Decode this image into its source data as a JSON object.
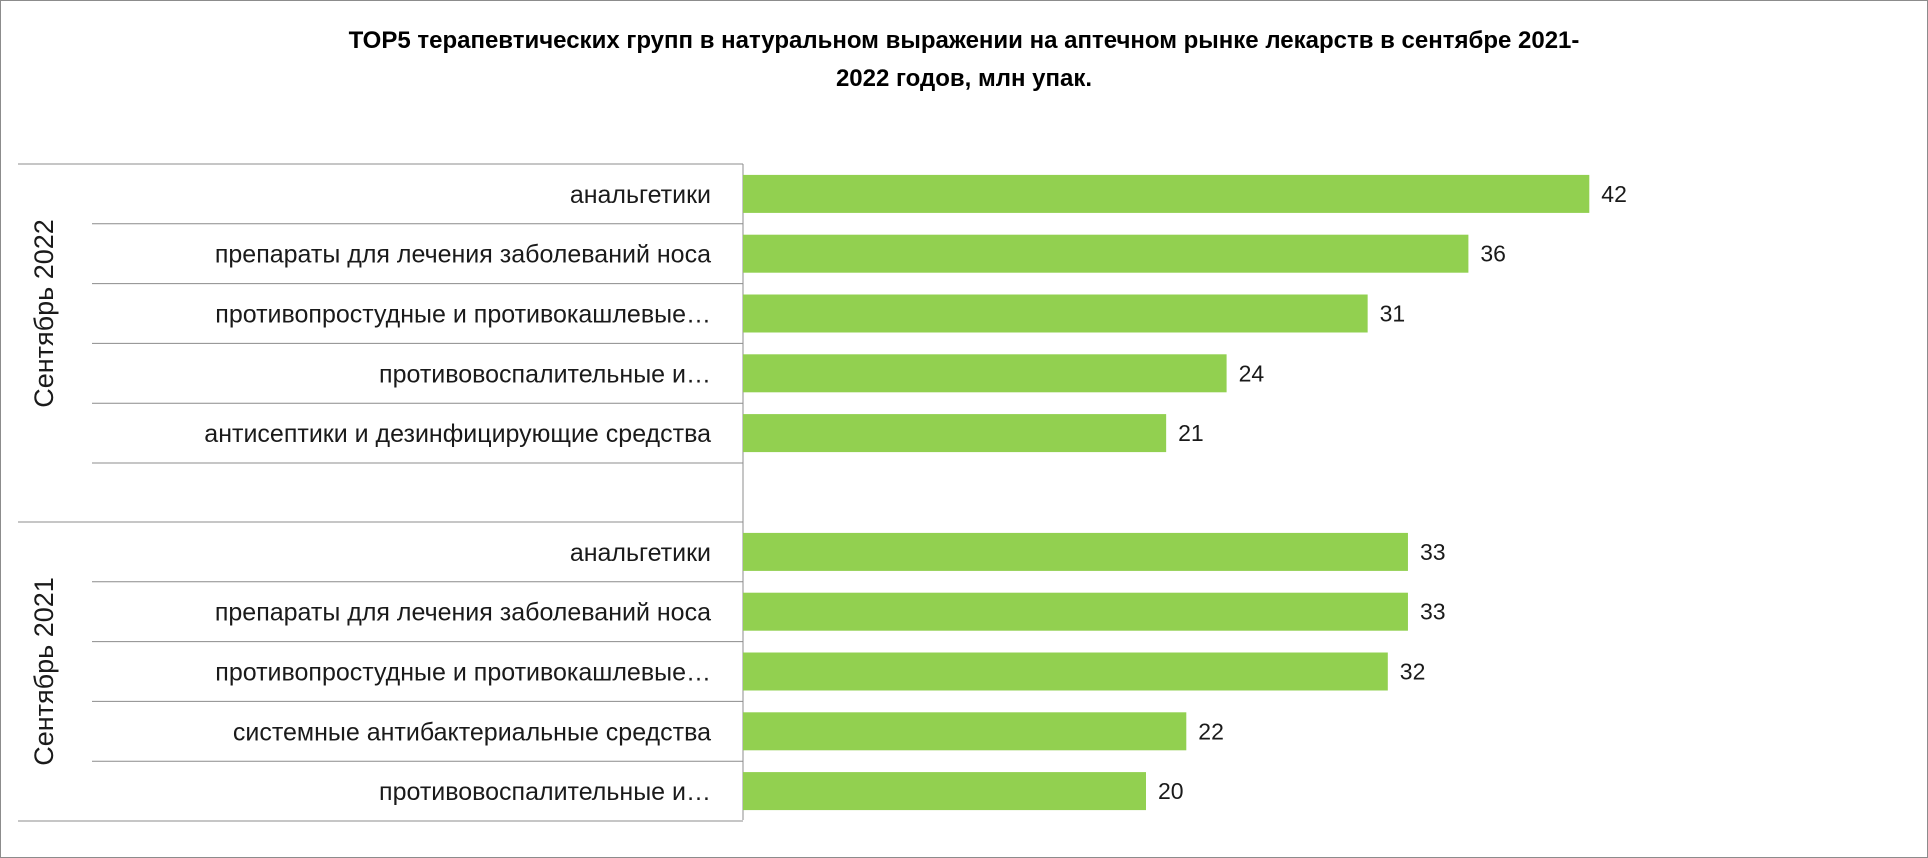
{
  "chart_data": {
    "type": "bar",
    "orientation": "horizontal",
    "title_line1": "ТОР5 терапевтических групп в натуральном выражении на аптечном рынке лекарств в сентябре 2021-",
    "title_line2": "2022 годов, млн упак.",
    "bar_color": "#92d050",
    "grid": false,
    "legend": "none",
    "xlim": [
      0,
      50
    ],
    "groups": [
      {
        "name": "Сентябрь 2022",
        "items": [
          {
            "category": "анальгетики",
            "value": 42
          },
          {
            "category": "препараты для лечения заболеваний носа",
            "value": 36
          },
          {
            "category": "противопростудные  и противокашлевые…",
            "value": 31
          },
          {
            "category": "противовоспалительные  и…",
            "value": 24
          },
          {
            "category": "антисептики и дезинфицирующие средства",
            "value": 21
          }
        ]
      },
      {
        "name": "Сентябрь 2021",
        "items": [
          {
            "category": "анальгетики",
            "value": 33
          },
          {
            "category": "препараты для лечения заболеваний носа",
            "value": 33
          },
          {
            "category": "противопростудные  и противокашлевые…",
            "value": 32
          },
          {
            "category": "системные антибактериальные средства",
            "value": 22
          },
          {
            "category": "противовоспалительные  и…",
            "value": 20
          }
        ]
      }
    ]
  }
}
